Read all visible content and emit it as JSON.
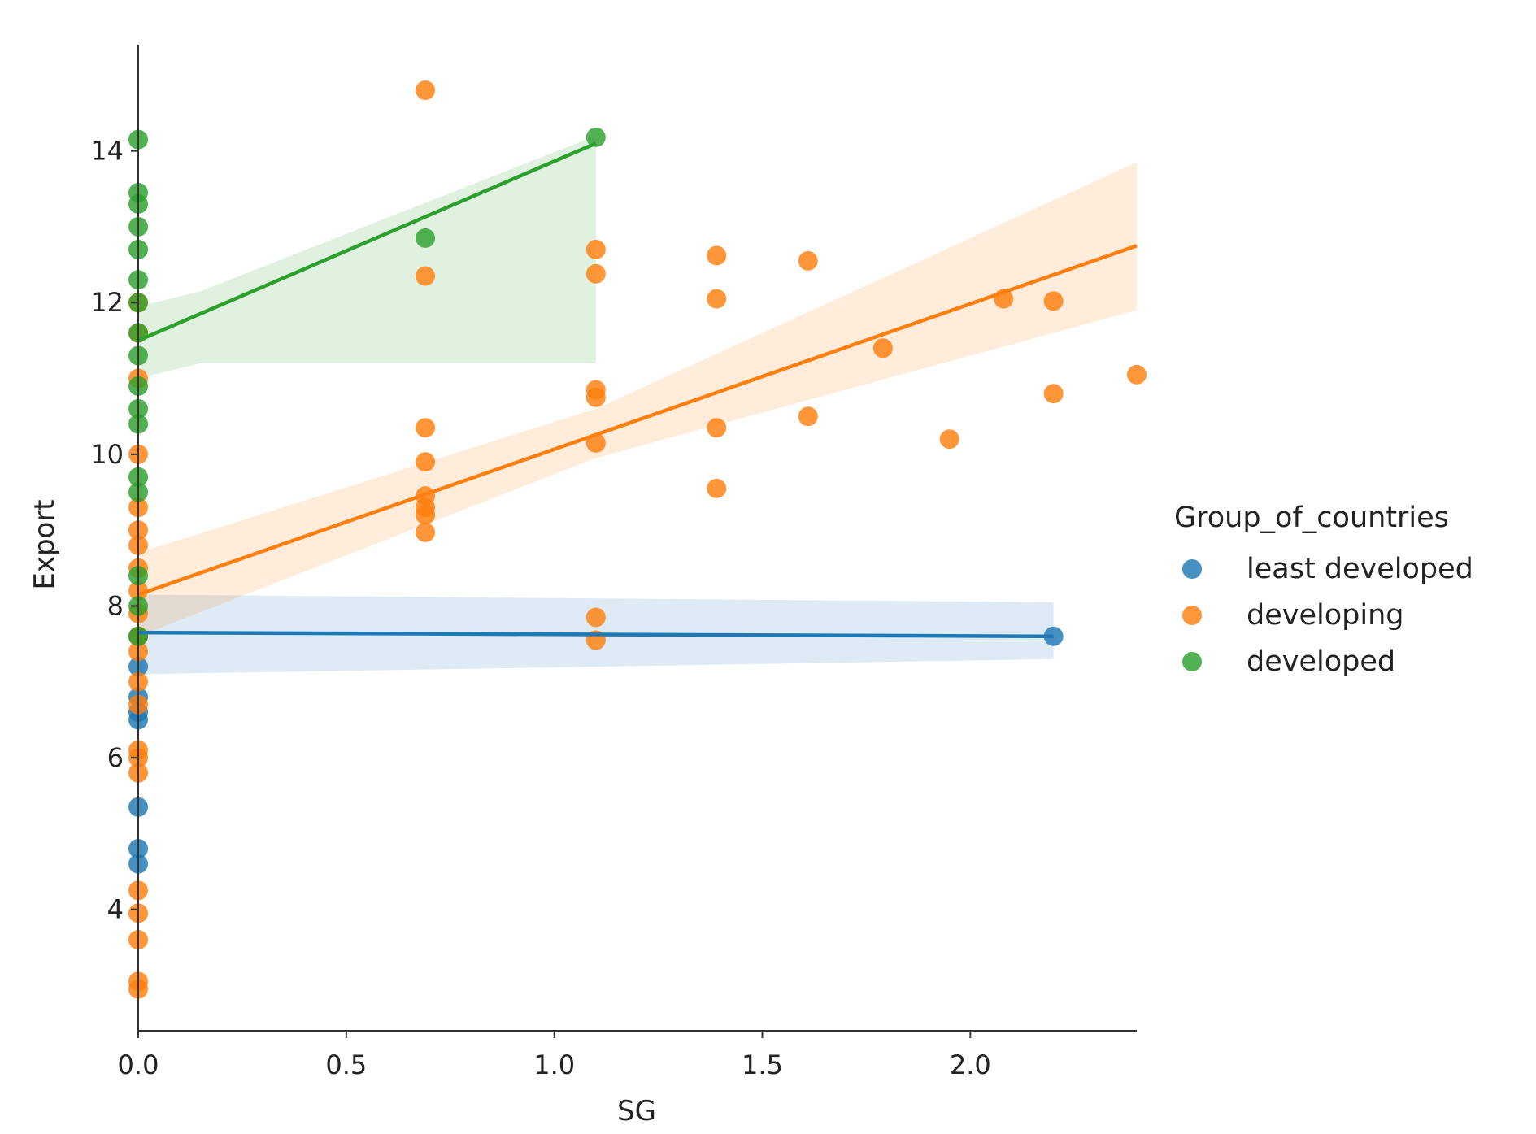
{
  "chart_data": {
    "type": "scatter",
    "title": "",
    "xlabel": "SG",
    "ylabel": "Export",
    "xlim": [
      0,
      2.4
    ],
    "ylim": [
      2.4,
      15.4
    ],
    "xticks": [
      0,
      0.5,
      1,
      1.5,
      2
    ],
    "xtick_labels": [
      "0.0",
      "0.5",
      "1.0",
      "1.5",
      "2.0"
    ],
    "yticks": [
      4,
      6,
      8,
      10,
      12,
      14
    ],
    "ytick_labels": [
      "4",
      "6",
      "8",
      "10",
      "12",
      "14"
    ],
    "grid": false,
    "legend": {
      "title": "Group_of_countries",
      "placement": "right"
    },
    "series": [
      {
        "name": "least developed",
        "color": "#1f77b4",
        "points": [
          [
            0,
            4.6
          ],
          [
            0,
            4.8
          ],
          [
            0,
            5.35
          ],
          [
            0,
            6.5
          ],
          [
            0,
            6.6
          ],
          [
            0,
            6.8
          ],
          [
            0,
            7.2
          ],
          [
            0,
            7.6
          ],
          [
            2.2,
            7.6
          ]
        ],
        "fit": {
          "x": [
            0,
            2.2
          ],
          "y": [
            7.65,
            7.6
          ]
        },
        "ci": {
          "x": [
            0,
            2.2
          ],
          "lower": [
            7.1,
            7.3
          ],
          "upper": [
            8.15,
            8.05
          ]
        }
      },
      {
        "name": "developing",
        "color": "#ff7f0e",
        "points": [
          [
            0,
            2.95
          ],
          [
            0,
            3.05
          ],
          [
            0,
            3.6
          ],
          [
            0,
            3.95
          ],
          [
            0,
            4.25
          ],
          [
            0,
            5.8
          ],
          [
            0,
            6.0
          ],
          [
            0,
            6.1
          ],
          [
            0,
            6.7
          ],
          [
            0,
            7.0
          ],
          [
            0,
            7.4
          ],
          [
            0,
            7.6
          ],
          [
            0,
            7.9
          ],
          [
            0,
            8.2
          ],
          [
            0,
            8.5
          ],
          [
            0,
            8.8
          ],
          [
            0,
            9.0
          ],
          [
            0,
            9.3
          ],
          [
            0,
            10.0
          ],
          [
            0,
            11.0
          ],
          [
            0,
            11.6
          ],
          [
            0,
            12.0
          ],
          [
            0.69,
            14.8
          ],
          [
            0.69,
            12.35
          ],
          [
            0.69,
            10.35
          ],
          [
            0.69,
            9.9
          ],
          [
            0.69,
            9.45
          ],
          [
            0.69,
            9.3
          ],
          [
            0.69,
            9.2
          ],
          [
            0.69,
            8.97
          ],
          [
            1.1,
            12.7
          ],
          [
            1.1,
            12.38
          ],
          [
            1.1,
            10.85
          ],
          [
            1.1,
            10.75
          ],
          [
            1.1,
            10.15
          ],
          [
            1.1,
            7.85
          ],
          [
            1.1,
            7.55
          ],
          [
            1.39,
            12.62
          ],
          [
            1.39,
            12.05
          ],
          [
            1.39,
            10.35
          ],
          [
            1.39,
            9.55
          ],
          [
            1.61,
            12.55
          ],
          [
            1.61,
            10.5
          ],
          [
            1.79,
            11.4
          ],
          [
            1.95,
            10.2
          ],
          [
            2.08,
            12.05
          ],
          [
            2.2,
            12.02
          ],
          [
            2.2,
            10.8
          ],
          [
            2.4,
            11.05
          ]
        ],
        "fit": {
          "x": [
            0,
            2.4
          ],
          "y": [
            8.15,
            12.75
          ]
        },
        "ci": {
          "x": [
            0,
            1.1,
            2.4
          ],
          "lower": [
            7.6,
            9.95,
            11.9
          ],
          "upper": [
            8.7,
            10.6,
            13.85
          ]
        }
      },
      {
        "name": "developed",
        "color": "#2ca02c",
        "points": [
          [
            0,
            7.6
          ],
          [
            0,
            8.0
          ],
          [
            0,
            8.4
          ],
          [
            0,
            9.5
          ],
          [
            0,
            9.7
          ],
          [
            0,
            10.4
          ],
          [
            0,
            10.6
          ],
          [
            0,
            10.9
          ],
          [
            0,
            11.3
          ],
          [
            0,
            11.6
          ],
          [
            0,
            12.0
          ],
          [
            0,
            12.3
          ],
          [
            0,
            12.7
          ],
          [
            0,
            13.0
          ],
          [
            0,
            13.3
          ],
          [
            0,
            13.45
          ],
          [
            0,
            14.15
          ],
          [
            0.69,
            12.85
          ],
          [
            1.1,
            14.18
          ]
        ],
        "fit": {
          "x": [
            0,
            1.1
          ],
          "y": [
            11.5,
            14.1
          ]
        },
        "ci": {
          "x": [
            0,
            0.15,
            1.1
          ],
          "lower": [
            11.0,
            11.2,
            11.2
          ],
          "upper": [
            11.95,
            12.15,
            14.2
          ]
        }
      }
    ]
  }
}
